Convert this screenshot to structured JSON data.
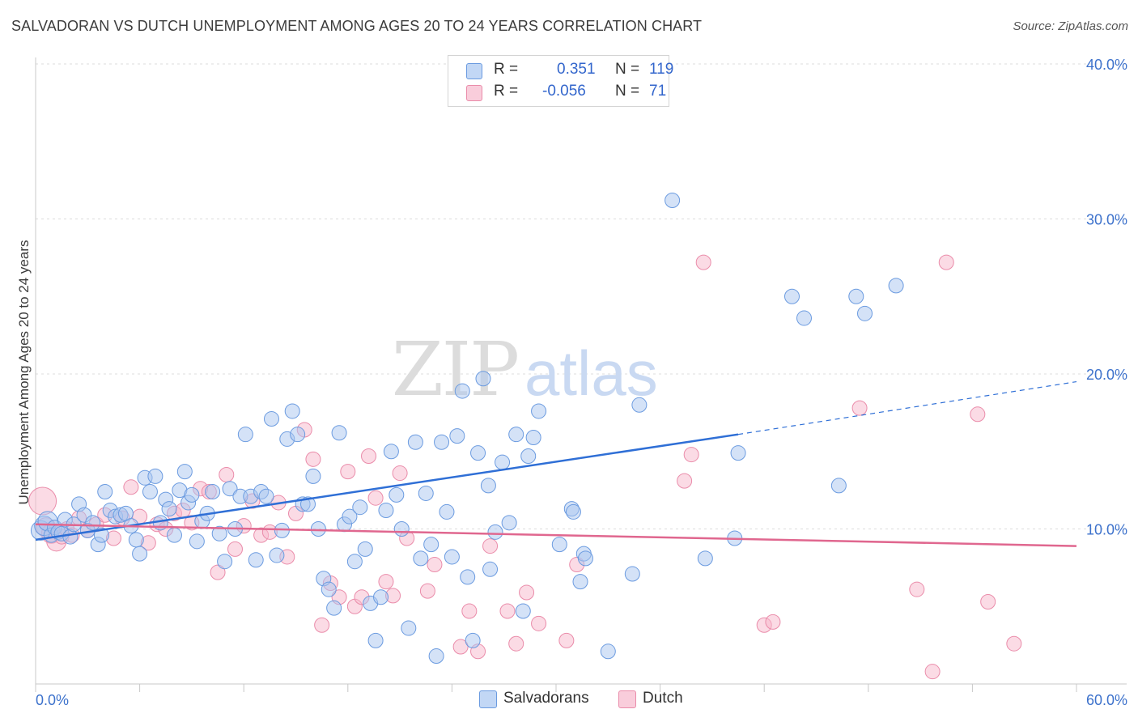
{
  "title": "SALVADORAN VS DUTCH UNEMPLOYMENT AMONG AGES 20 TO 24 YEARS CORRELATION CHART",
  "source": "Source: ZipAtlas.com",
  "watermark": {
    "zip": "ZIP",
    "atlas": "atlas"
  },
  "legend": {
    "salvadorans": {
      "r_label": "R =",
      "r_value": "0.351",
      "n_label": "N =",
      "n_value": "119"
    },
    "dutch": {
      "r_label": "R =",
      "r_value": "-0.056",
      "n_label": "N =",
      "n_value": "71"
    }
  },
  "bottom_legend": {
    "salvadorans": "Salvadorans",
    "dutch": "Dutch"
  },
  "colors": {
    "salvadorans_fill": "#a9c6f0",
    "salvadorans_stroke": "#6b9be0",
    "salvadorans_line": "#2f6fd6",
    "dutch_fill": "#f7b8cc",
    "dutch_stroke": "#ea8caa",
    "dutch_line": "#e0678f",
    "axis_label": "#3d72cc",
    "grid": "#dcdcdc"
  },
  "chart_data": {
    "type": "scatter",
    "title": "SALVADORAN VS DUTCH UNEMPLOYMENT AMONG AGES 20 TO 24 YEARS CORRELATION CHART",
    "xlabel": "",
    "ylabel": "Unemployment Among Ages 20 to 24 years",
    "xlim": [
      0,
      60
    ],
    "ylim": [
      0,
      40
    ],
    "x_tick_labels": [
      "0.0%",
      "60.0%"
    ],
    "y_ticks": [
      10,
      20,
      30,
      40
    ],
    "y_tick_labels": [
      "10.0%",
      "20.0%",
      "30.0%",
      "40.0%"
    ],
    "grid": true,
    "legend_position": "top-center",
    "series": [
      {
        "name": "Salvadorans",
        "r": 0.351,
        "n": 119,
        "trend": {
          "x0": 0,
          "y0": 9.3,
          "x1": 40.5,
          "y1": 16.1,
          "dash_to_x": 60,
          "dash_to_y": 19.5
        },
        "points": [
          [
            0.3,
            9.9
          ],
          [
            0.5,
            10.2
          ],
          [
            0.7,
            10.5
          ],
          [
            0.9,
            9.6
          ],
          [
            1.1,
            10.1
          ],
          [
            1.3,
            9.8
          ],
          [
            1.5,
            9.7
          ],
          [
            1.7,
            10.6
          ],
          [
            2.0,
            9.5
          ],
          [
            2.2,
            10.3
          ],
          [
            2.5,
            11.6
          ],
          [
            2.8,
            10.9
          ],
          [
            3.0,
            9.9
          ],
          [
            3.3,
            10.4
          ],
          [
            3.6,
            9.0
          ],
          [
            3.8,
            9.6
          ],
          [
            4.0,
            12.4
          ],
          [
            4.3,
            11.2
          ],
          [
            4.6,
            10.8
          ],
          [
            4.9,
            10.9
          ],
          [
            5.2,
            11.0
          ],
          [
            5.5,
            10.2
          ],
          [
            5.8,
            9.3
          ],
          [
            6.0,
            8.4
          ],
          [
            6.3,
            13.3
          ],
          [
            6.6,
            12.4
          ],
          [
            6.9,
            13.4
          ],
          [
            7.2,
            10.4
          ],
          [
            7.5,
            11.9
          ],
          [
            7.7,
            11.3
          ],
          [
            8.0,
            9.6
          ],
          [
            8.3,
            12.5
          ],
          [
            8.6,
            13.7
          ],
          [
            8.8,
            11.7
          ],
          [
            9.0,
            12.2
          ],
          [
            9.3,
            9.2
          ],
          [
            9.6,
            10.5
          ],
          [
            9.9,
            11.0
          ],
          [
            10.2,
            12.4
          ],
          [
            10.6,
            9.7
          ],
          [
            10.9,
            7.9
          ],
          [
            11.2,
            12.6
          ],
          [
            11.5,
            10.0
          ],
          [
            11.8,
            12.1
          ],
          [
            12.1,
            16.1
          ],
          [
            12.4,
            12.1
          ],
          [
            12.7,
            8.0
          ],
          [
            13.0,
            12.4
          ],
          [
            13.3,
            12.1
          ],
          [
            13.6,
            17.1
          ],
          [
            13.9,
            8.3
          ],
          [
            14.2,
            9.9
          ],
          [
            14.5,
            15.8
          ],
          [
            14.8,
            17.6
          ],
          [
            15.1,
            16.1
          ],
          [
            15.4,
            11.6
          ],
          [
            15.7,
            11.6
          ],
          [
            16.0,
            13.4
          ],
          [
            16.3,
            10.0
          ],
          [
            16.6,
            6.8
          ],
          [
            16.9,
            6.1
          ],
          [
            17.2,
            4.9
          ],
          [
            17.5,
            16.2
          ],
          [
            17.8,
            10.3
          ],
          [
            18.1,
            10.8
          ],
          [
            18.4,
            7.9
          ],
          [
            18.7,
            11.4
          ],
          [
            19.0,
            8.7
          ],
          [
            19.3,
            5.2
          ],
          [
            19.6,
            2.8
          ],
          [
            19.9,
            5.6
          ],
          [
            20.2,
            11.2
          ],
          [
            20.5,
            15.0
          ],
          [
            20.8,
            12.2
          ],
          [
            21.1,
            10.0
          ],
          [
            21.5,
            3.6
          ],
          [
            21.9,
            15.6
          ],
          [
            22.2,
            8.1
          ],
          [
            22.5,
            12.3
          ],
          [
            22.8,
            9.0
          ],
          [
            23.1,
            1.8
          ],
          [
            23.4,
            15.6
          ],
          [
            23.7,
            11.1
          ],
          [
            24.0,
            8.2
          ],
          [
            24.3,
            16.0
          ],
          [
            24.6,
            18.9
          ],
          [
            24.9,
            6.9
          ],
          [
            25.2,
            2.8
          ],
          [
            25.5,
            14.9
          ],
          [
            25.8,
            19.7
          ],
          [
            26.1,
            12.8
          ],
          [
            26.5,
            9.8
          ],
          [
            26.9,
            14.3
          ],
          [
            27.3,
            10.4
          ],
          [
            27.7,
            16.1
          ],
          [
            28.1,
            4.7
          ],
          [
            28.4,
            14.7
          ],
          [
            28.7,
            15.9
          ],
          [
            29.0,
            17.6
          ],
          [
            30.9,
            11.3
          ],
          [
            31.0,
            11.1
          ],
          [
            31.4,
            6.6
          ],
          [
            31.6,
            8.4
          ],
          [
            31.7,
            8.1
          ],
          [
            33.0,
            2.1
          ],
          [
            34.4,
            7.1
          ],
          [
            34.8,
            18.0
          ],
          [
            36.7,
            31.2
          ],
          [
            38.6,
            8.1
          ],
          [
            40.3,
            9.4
          ],
          [
            40.5,
            14.9
          ],
          [
            43.6,
            25.0
          ],
          [
            44.3,
            23.6
          ],
          [
            46.3,
            12.8
          ],
          [
            47.3,
            25.0
          ],
          [
            47.8,
            23.9
          ],
          [
            49.6,
            25.7
          ],
          [
            30.2,
            9.0
          ],
          [
            26.2,
            7.4
          ]
        ]
      },
      {
        "name": "Dutch",
        "r": -0.056,
        "n": 71,
        "trend": {
          "x0": 0,
          "y0": 10.3,
          "x1": 60,
          "y1": 8.9
        },
        "points": [
          [
            0.4,
            11.8
          ],
          [
            0.6,
            10.1
          ],
          [
            0.9,
            9.7
          ],
          [
            1.2,
            9.2
          ],
          [
            1.5,
            9.5
          ],
          [
            1.8,
            10.0
          ],
          [
            2.1,
            9.6
          ],
          [
            2.5,
            10.7
          ],
          [
            3.0,
            9.9
          ],
          [
            3.5,
            10.3
          ],
          [
            4.0,
            10.9
          ],
          [
            4.5,
            9.4
          ],
          [
            5.0,
            10.7
          ],
          [
            5.5,
            12.7
          ],
          [
            6.0,
            10.8
          ],
          [
            6.5,
            9.1
          ],
          [
            7.0,
            10.3
          ],
          [
            7.5,
            10.0
          ],
          [
            8.0,
            11.0
          ],
          [
            8.5,
            11.2
          ],
          [
            9.0,
            10.4
          ],
          [
            9.5,
            12.6
          ],
          [
            10.0,
            12.4
          ],
          [
            10.5,
            7.2
          ],
          [
            11.0,
            13.5
          ],
          [
            11.5,
            8.7
          ],
          [
            12.0,
            10.2
          ],
          [
            12.5,
            11.8
          ],
          [
            13.0,
            9.6
          ],
          [
            13.5,
            9.8
          ],
          [
            14.0,
            11.7
          ],
          [
            14.5,
            8.2
          ],
          [
            15.0,
            11.0
          ],
          [
            15.5,
            16.4
          ],
          [
            16.0,
            14.5
          ],
          [
            16.5,
            3.8
          ],
          [
            17.0,
            6.5
          ],
          [
            17.5,
            5.6
          ],
          [
            18.0,
            13.7
          ],
          [
            18.4,
            5.0
          ],
          [
            18.8,
            5.6
          ],
          [
            19.2,
            14.7
          ],
          [
            19.6,
            12.0
          ],
          [
            20.2,
            6.6
          ],
          [
            20.6,
            5.7
          ],
          [
            21.0,
            13.6
          ],
          [
            21.4,
            9.4
          ],
          [
            22.6,
            6.0
          ],
          [
            23.0,
            7.7
          ],
          [
            24.5,
            2.4
          ],
          [
            25.0,
            4.7
          ],
          [
            25.5,
            2.1
          ],
          [
            26.2,
            8.9
          ],
          [
            27.2,
            4.7
          ],
          [
            27.7,
            2.6
          ],
          [
            28.3,
            5.9
          ],
          [
            29.0,
            3.9
          ],
          [
            30.6,
            2.8
          ],
          [
            31.2,
            7.7
          ],
          [
            37.4,
            13.1
          ],
          [
            37.8,
            14.8
          ],
          [
            38.5,
            27.2
          ],
          [
            42.0,
            3.8
          ],
          [
            42.5,
            4.0
          ],
          [
            47.5,
            17.8
          ],
          [
            50.8,
            6.1
          ],
          [
            51.7,
            0.8
          ],
          [
            52.5,
            27.2
          ],
          [
            54.3,
            17.4
          ],
          [
            54.9,
            5.3
          ],
          [
            56.4,
            2.6
          ]
        ]
      }
    ]
  }
}
